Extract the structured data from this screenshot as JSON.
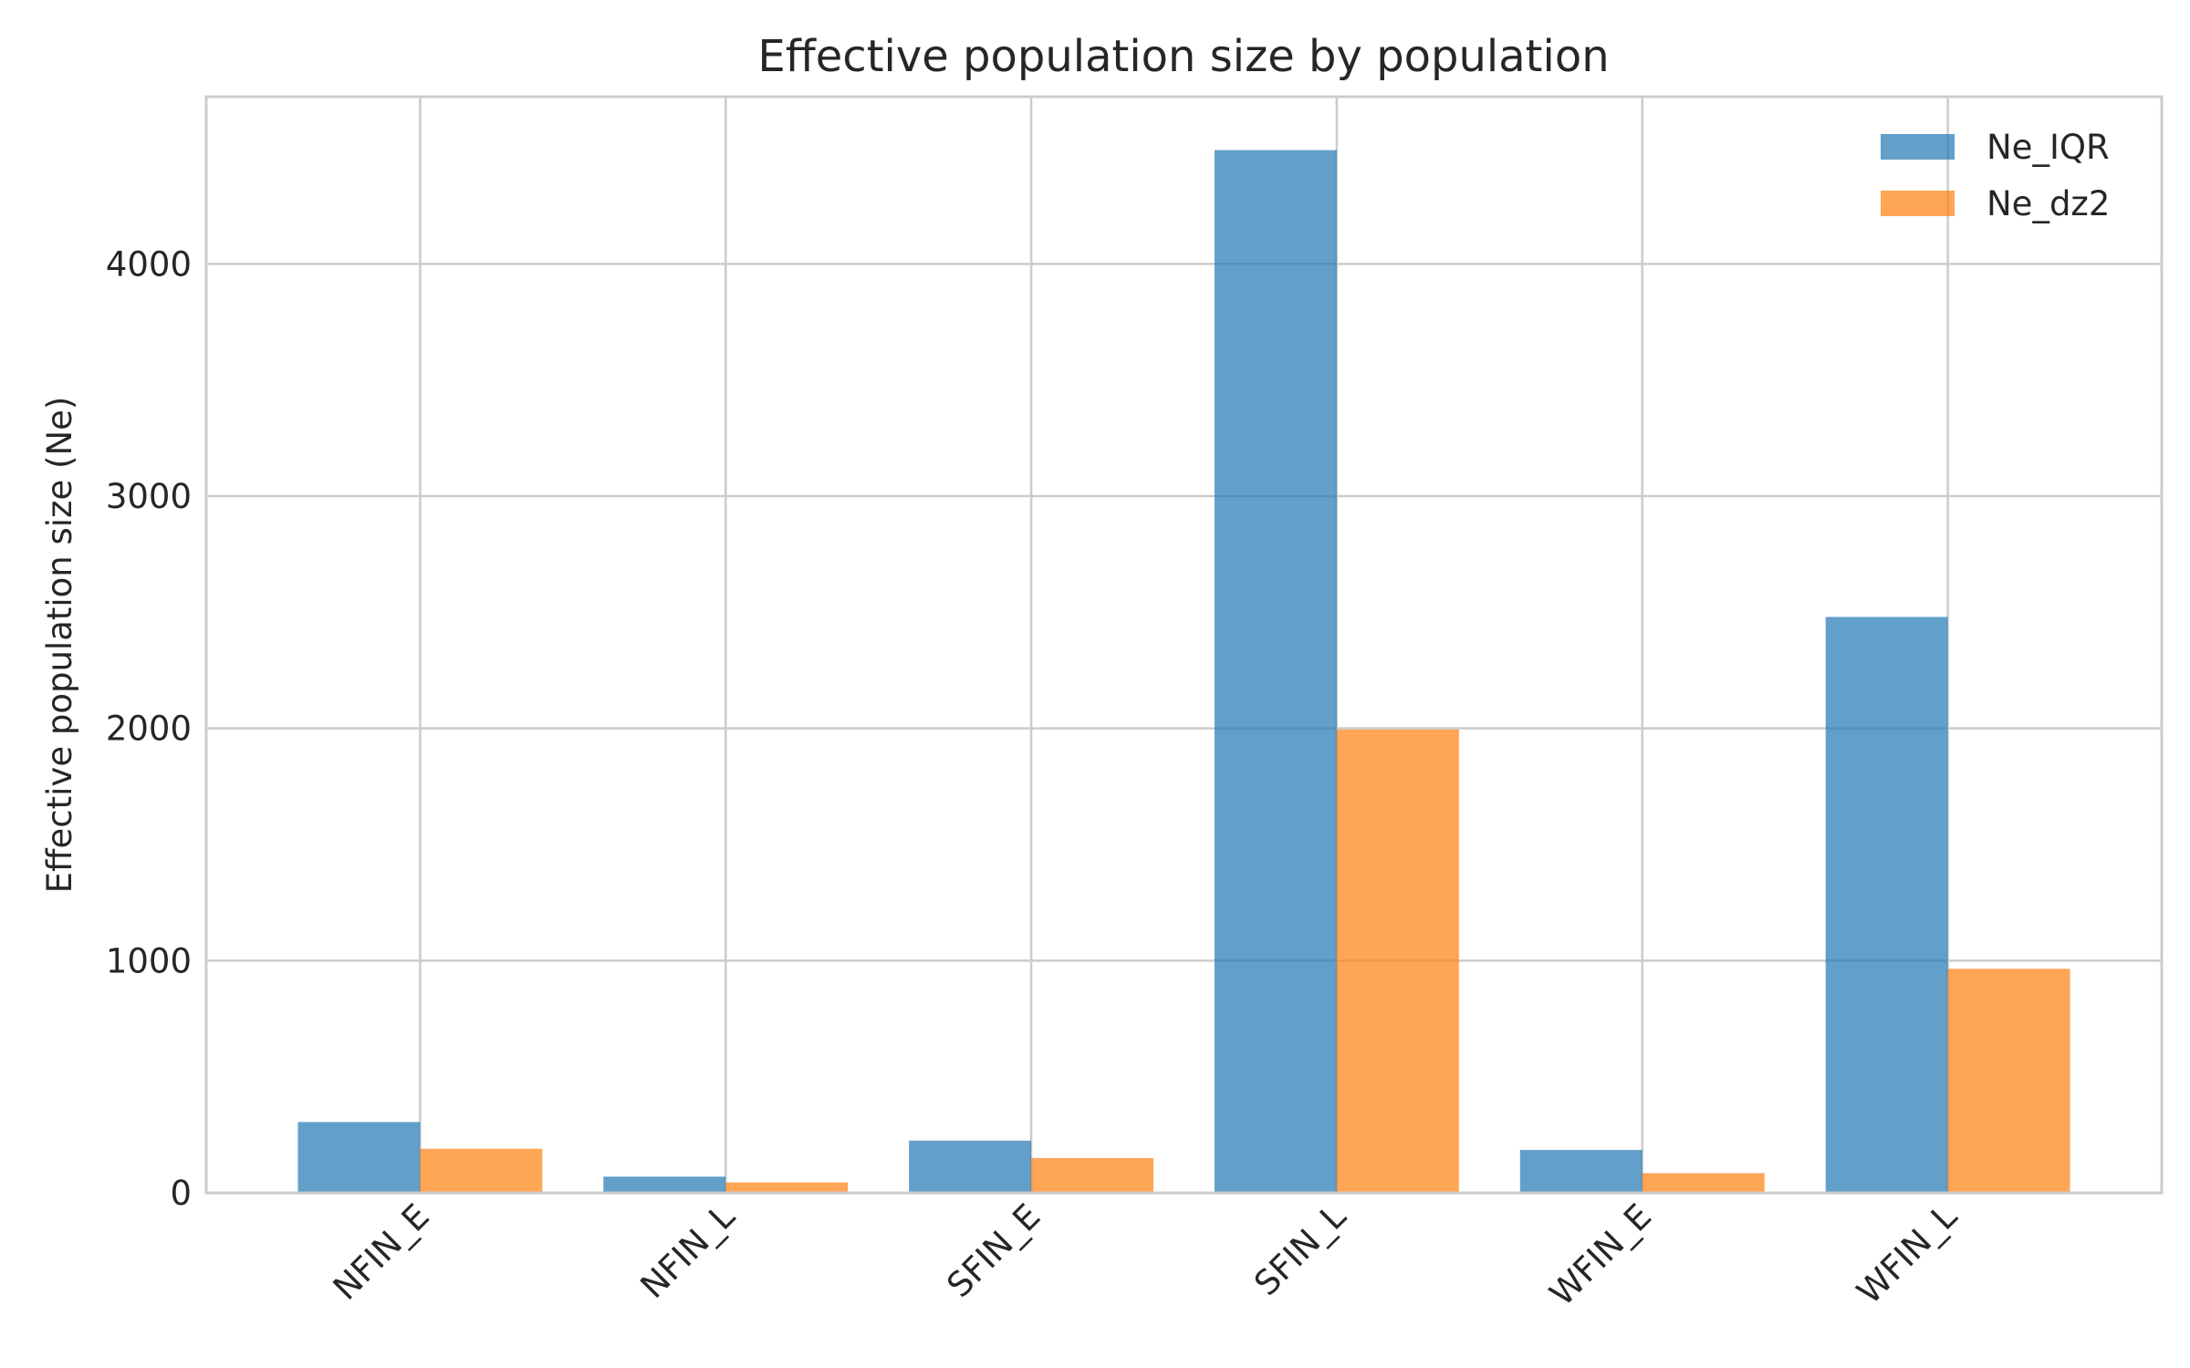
{
  "chart_data": {
    "type": "bar",
    "title": "Effective population size by population",
    "xlabel": "",
    "ylabel": "Effective population size (Ne)",
    "categories": [
      "NFIN_E",
      "NFIN_L",
      "SFIN_E",
      "SFIN_L",
      "WFIN_E",
      "WFIN_L"
    ],
    "series": [
      {
        "name": "Ne_IQR",
        "color": "#1f77b4",
        "values": [
          305,
          70,
          225,
          4490,
          185,
          2480
        ]
      },
      {
        "name": "Ne_dz2",
        "color": "#ff7f0e",
        "values": [
          190,
          45,
          150,
          1995,
          85,
          965
        ]
      }
    ],
    "ylim": [
      0,
      4720
    ],
    "yticks": [
      0,
      1000,
      2000,
      3000,
      4000
    ],
    "ytick_labels": [
      "0",
      "1000",
      "2000",
      "3000",
      "4000"
    ],
    "grid": true,
    "legend_position": "top-right",
    "bar_opacity": 0.7
  }
}
